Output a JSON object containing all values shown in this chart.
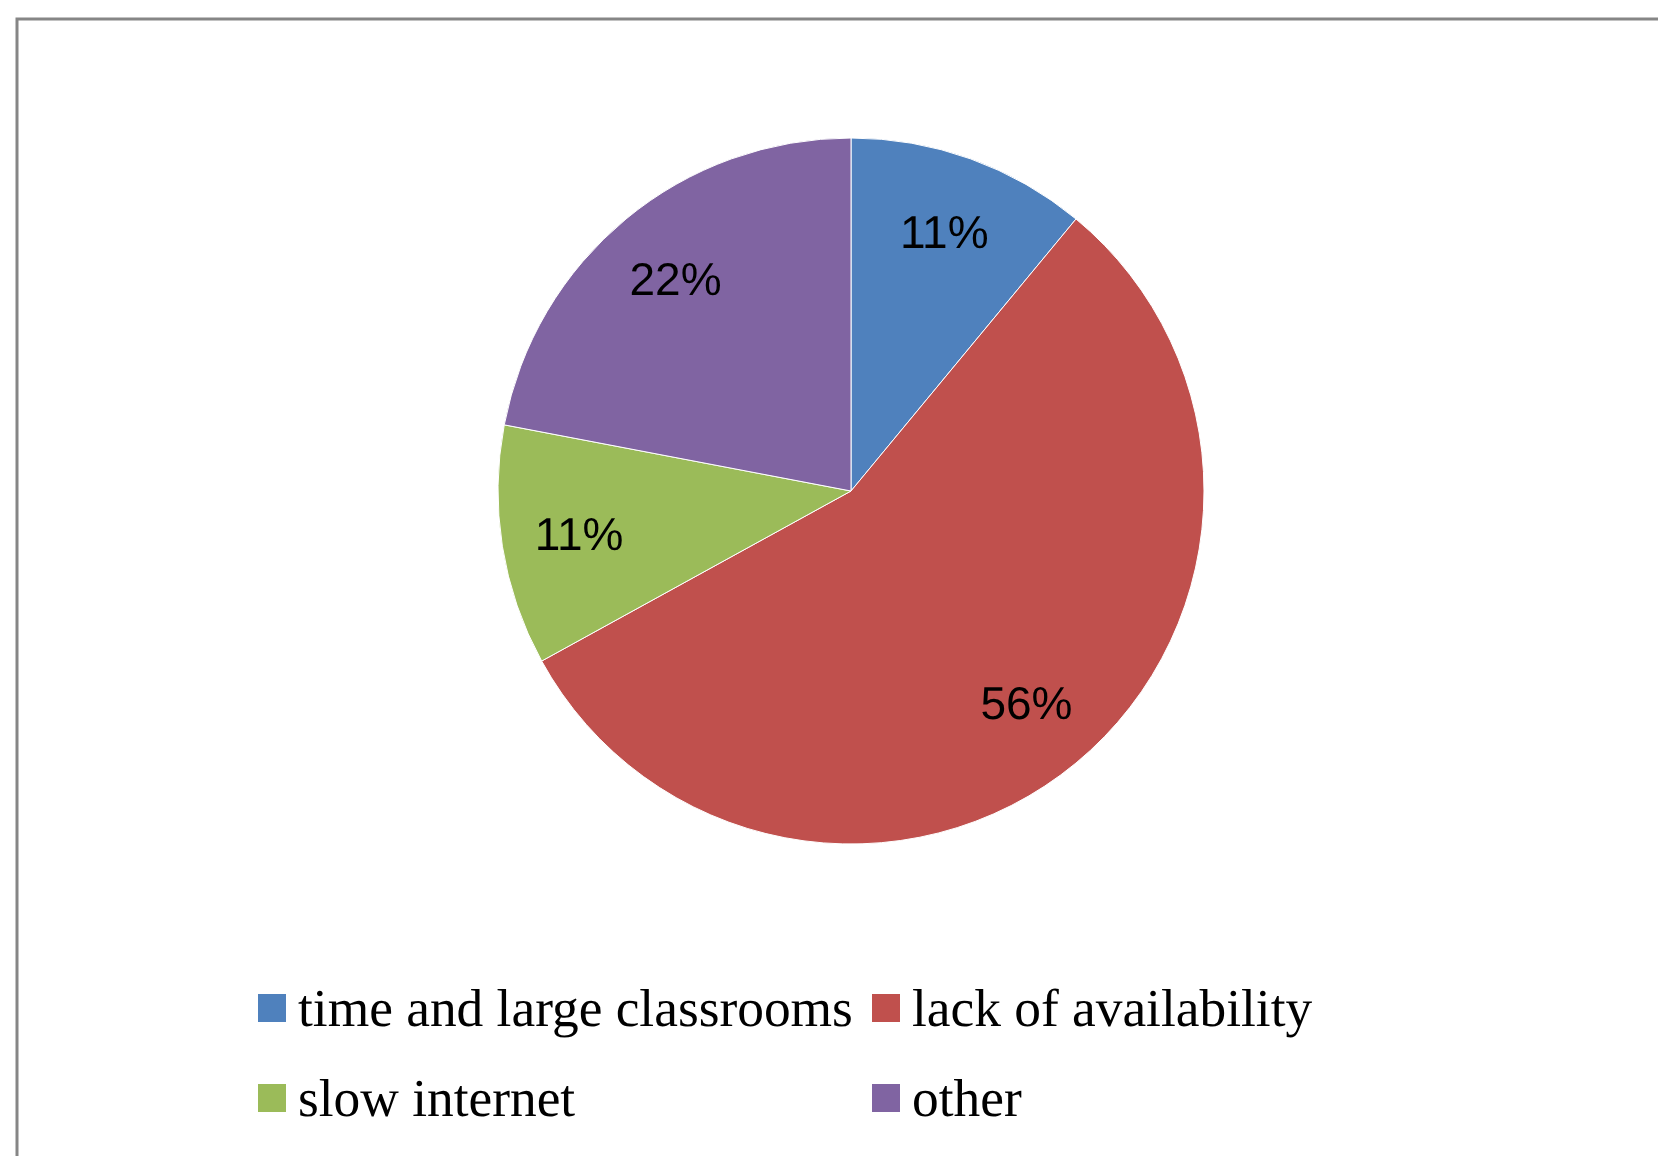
{
  "chart_data": {
    "type": "pie",
    "categories": [
      "time and large classrooms",
      "lack of availability",
      "slow internet",
      "other"
    ],
    "values": [
      11,
      56,
      11,
      22
    ],
    "colors": [
      "#4f81bd",
      "#c0504d",
      "#9bbb59",
      "#8064a2"
    ],
    "value_labels": [
      "11%",
      "56%",
      "11%",
      "22%"
    ],
    "legend": "bottom"
  }
}
